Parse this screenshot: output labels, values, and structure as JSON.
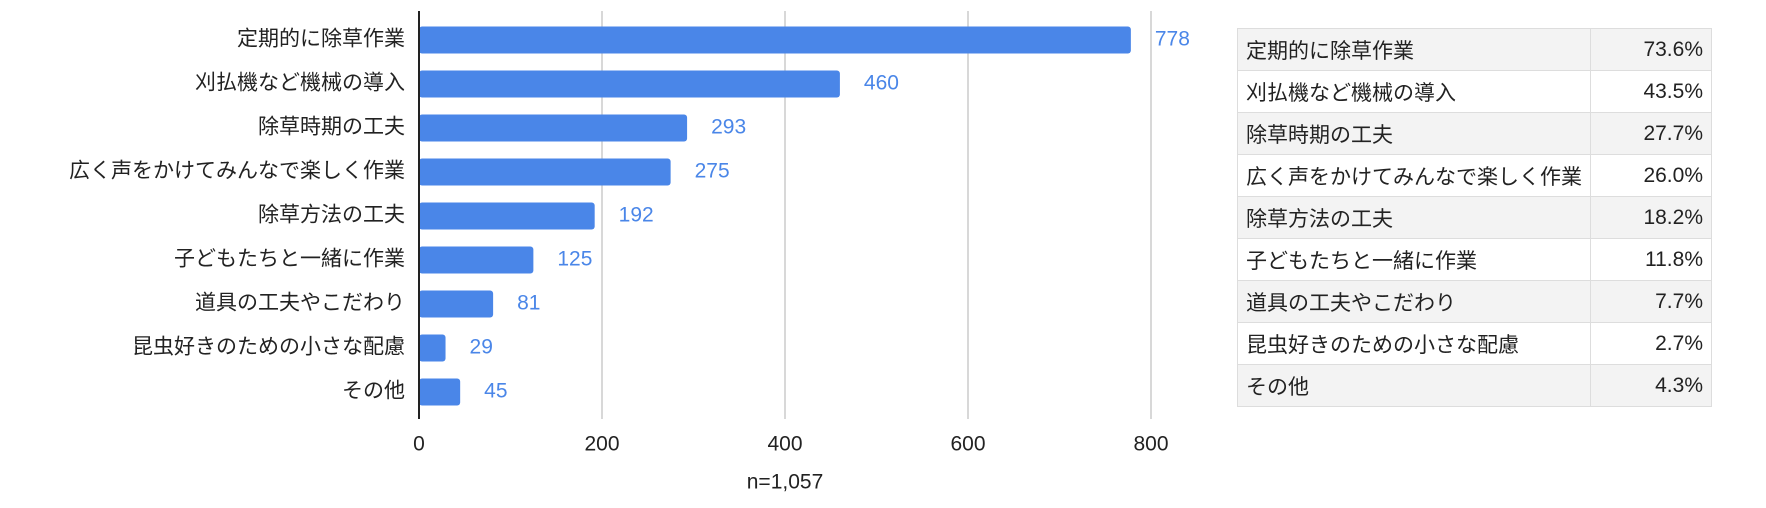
{
  "chart_data": {
    "type": "bar",
    "orientation": "horizontal",
    "categories": [
      "定期的に除草作業",
      "刈払機など機械の導入",
      "除草時期の工夫",
      "広く声をかけてみんなで楽しく作業",
      "除草方法の工夫",
      "子どもたちと一緒に作業",
      "道具の工夫やこだわり",
      "昆虫好きのための小さな配慮",
      "その他"
    ],
    "values": [
      778,
      460,
      293,
      275,
      192,
      125,
      81,
      29,
      45
    ],
    "color": "#4a86e8",
    "xlim": [
      0,
      800
    ],
    "xticks": [
      0,
      200,
      400,
      600,
      800
    ],
    "grid": true,
    "xlabel": "n=1,057"
  },
  "table": {
    "rows": [
      [
        "定期的に除草作業",
        "73.6%"
      ],
      [
        "刈払機など機械の導入",
        "43.5%"
      ],
      [
        "除草時期の工夫",
        "27.7%"
      ],
      [
        "広く声をかけてみんなで楽しく作業",
        "26.0%"
      ],
      [
        "除草方法の工夫",
        "18.2%"
      ],
      [
        "子どもたちと一緒に作業",
        "11.8%"
      ],
      [
        "道具の工夫やこだわり",
        "7.7%"
      ],
      [
        "昆虫好きのための小さな配慮",
        "2.7%"
      ],
      [
        "その他",
        "4.3%"
      ]
    ]
  }
}
